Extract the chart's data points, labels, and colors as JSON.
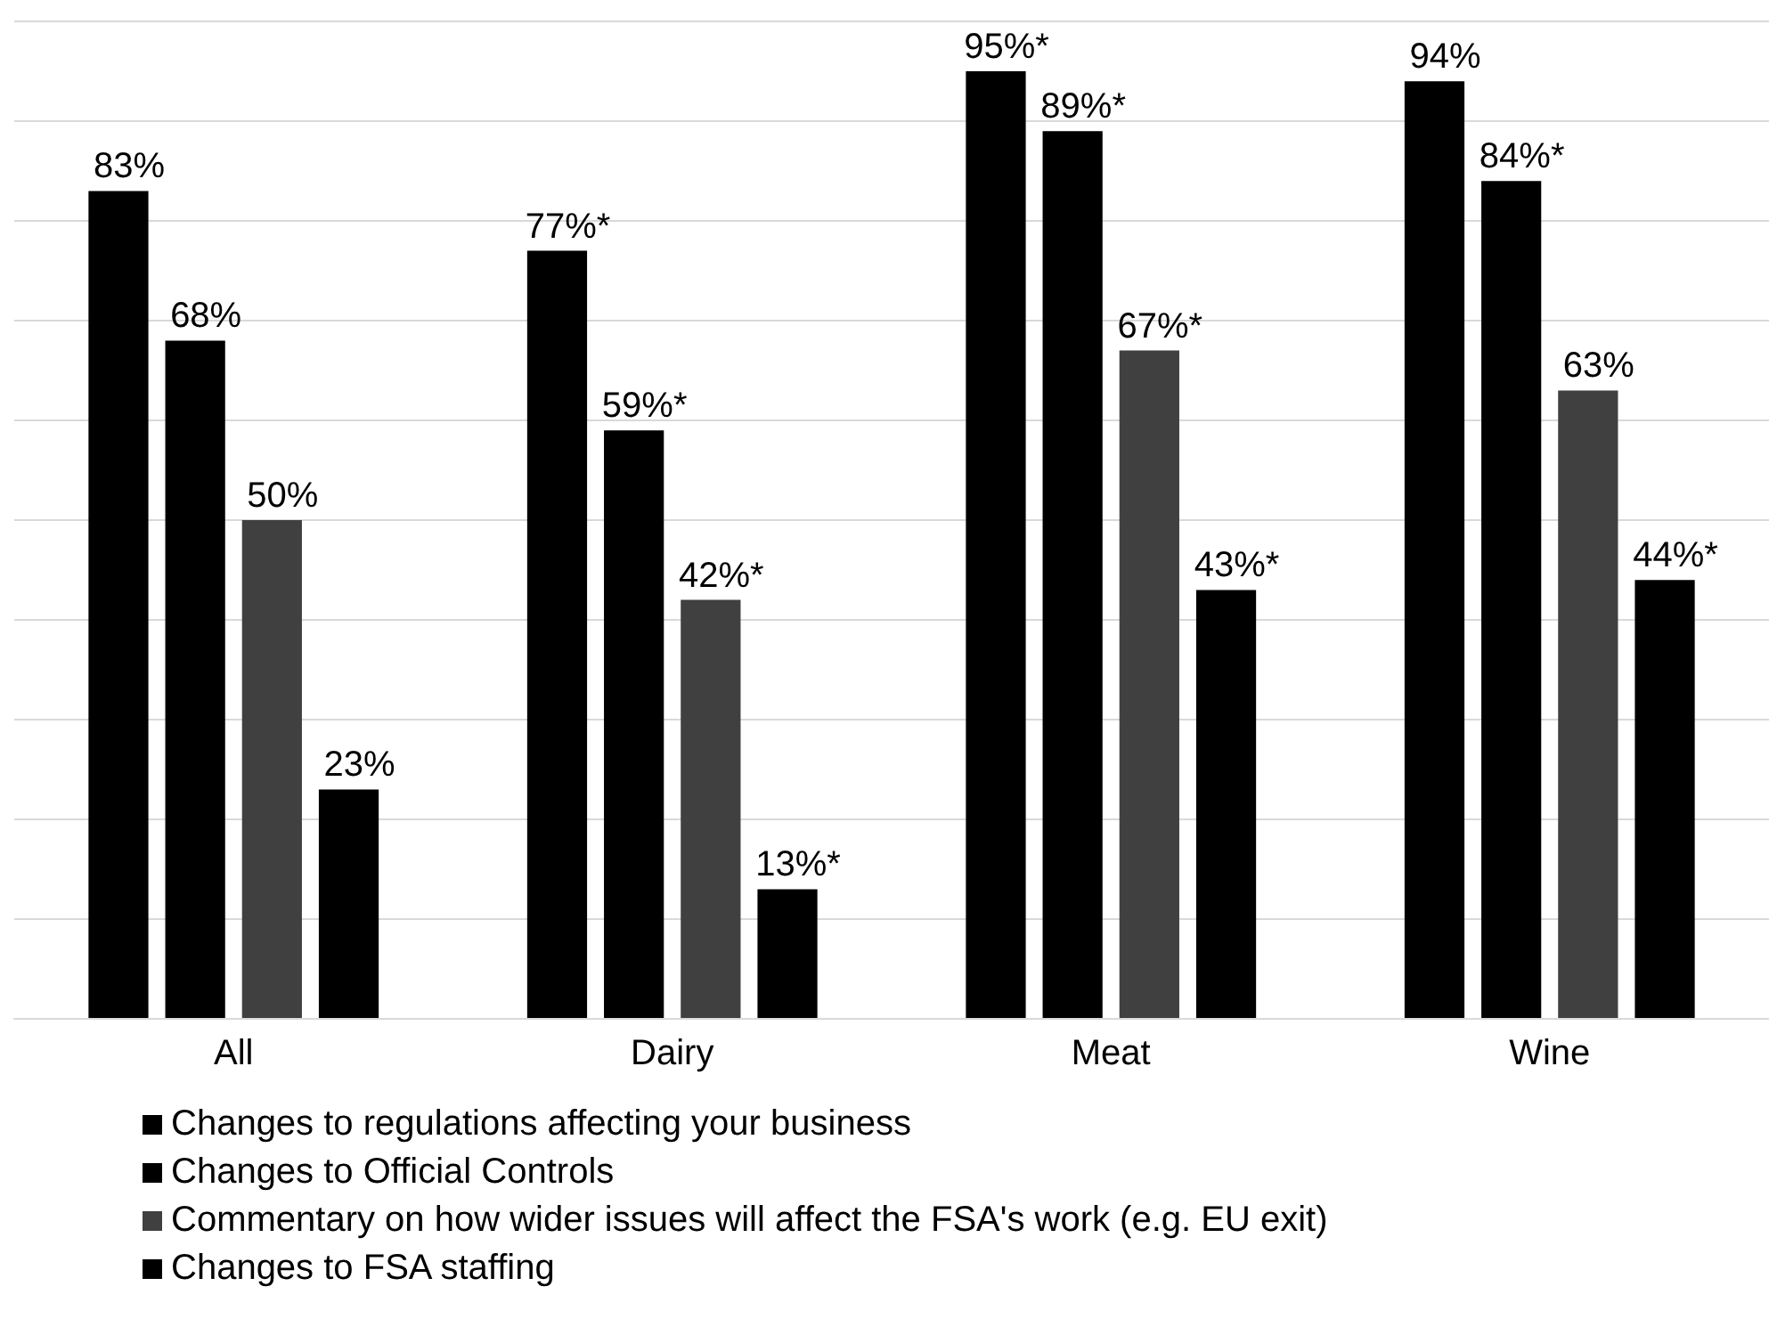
{
  "chart_data": {
    "type": "bar",
    "categories": [
      "All",
      "Dairy",
      "Meat",
      "Wine"
    ],
    "series": [
      {
        "name": "Changes to regulations affecting your business",
        "color": "#000000",
        "values": [
          83,
          77,
          95,
          94
        ],
        "value_labels": [
          "83%",
          "77%*",
          "95%*",
          "94%"
        ]
      },
      {
        "name": "Changes to Official Controls",
        "color": "#000000",
        "values": [
          68,
          59,
          89,
          84
        ],
        "value_labels": [
          "68%",
          "59%*",
          "89%*",
          "84%*"
        ]
      },
      {
        "name": "Commentary on how wider issues will affect the FSA's work (e.g. EU exit)",
        "color": "#404040",
        "values": [
          50,
          42,
          67,
          63
        ],
        "value_labels": [
          "50%",
          "42%*",
          "67%*",
          "63%"
        ]
      },
      {
        "name": "Changes to FSA staffing",
        "color": "#000000",
        "values": [
          23,
          13,
          43,
          44
        ],
        "value_labels": [
          "23%",
          "13%*",
          "43%*",
          "44%*"
        ]
      }
    ],
    "ylim": [
      0,
      100
    ],
    "yticks": [
      {
        "value": 0,
        "label": null
      },
      {
        "value": 10,
        "label": null
      },
      {
        "value": 20,
        "label": null
      },
      {
        "value": 30,
        "label": null
      },
      {
        "value": 40,
        "label": null
      },
      {
        "value": 50,
        "label": null
      },
      {
        "value": 60,
        "label": null
      },
      {
        "value": 70,
        "label": null
      },
      {
        "value": 80,
        "label": null
      },
      {
        "value": 90,
        "label": null
      },
      {
        "value": 100,
        "label": null
      }
    ],
    "tick_labels": "x",
    "grid": "y",
    "legend": "bottom"
  }
}
